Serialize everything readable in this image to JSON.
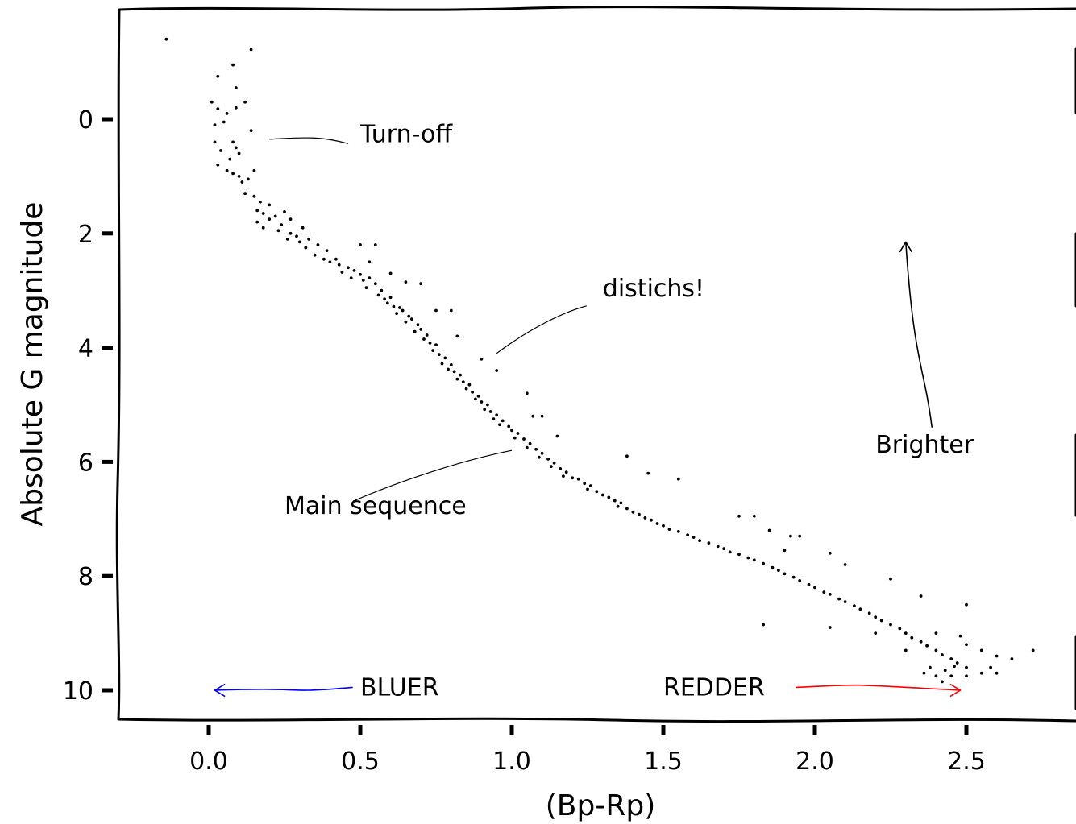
{
  "chart_data": {
    "type": "scatter",
    "title": "",
    "xlabel": "(Bp-Rp)",
    "ylabel": "Absolute G magnitude",
    "xlim": [
      -0.3,
      2.8
    ],
    "ylim": [
      10.4,
      -1.3
    ],
    "y_inverted": true,
    "grid": false,
    "style": "xkcd",
    "x_ticks": [
      {
        "value": 0.0,
        "label": "0.0"
      },
      {
        "value": 0.5,
        "label": "0.5"
      },
      {
        "value": 1.0,
        "label": "1.0"
      },
      {
        "value": 1.5,
        "label": "1.5"
      },
      {
        "value": 2.0,
        "label": "2.0"
      },
      {
        "value": 2.5,
        "label": "2.5"
      }
    ],
    "y_ticks": [
      {
        "value": 0,
        "label": "0"
      },
      {
        "value": 2,
        "label": "2"
      },
      {
        "value": 4,
        "label": "4"
      },
      {
        "value": 6,
        "label": "6"
      },
      {
        "value": 8,
        "label": "8"
      },
      {
        "value": 10,
        "label": "10"
      }
    ],
    "series": [
      {
        "color": "#000000",
        "marker": "dot",
        "points": [
          [
            -0.14,
            -1.4
          ],
          [
            0.08,
            -0.95
          ],
          [
            0.14,
            -1.22
          ],
          [
            0.03,
            -0.75
          ],
          [
            0.09,
            -0.55
          ],
          [
            0.12,
            -0.3
          ],
          [
            0.01,
            -0.3
          ],
          [
            0.03,
            -0.18
          ],
          [
            0.05,
            0.05
          ],
          [
            0.06,
            -0.1
          ],
          [
            0.09,
            -0.2
          ],
          [
            0.02,
            0.1
          ],
          [
            0.14,
            0.2
          ],
          [
            0.02,
            0.4
          ],
          [
            0.08,
            0.4
          ],
          [
            0.09,
            0.5
          ],
          [
            0.04,
            0.55
          ],
          [
            0.07,
            0.7
          ],
          [
            0.1,
            0.6
          ],
          [
            0.03,
            0.8
          ],
          [
            0.06,
            0.9
          ],
          [
            0.08,
            0.95
          ],
          [
            0.1,
            1.0
          ],
          [
            0.11,
            1.1
          ],
          [
            0.13,
            1.05
          ],
          [
            0.15,
            0.9
          ],
          [
            0.12,
            1.3
          ],
          [
            0.15,
            1.35
          ],
          [
            0.17,
            1.45
          ],
          [
            0.2,
            1.5
          ],
          [
            0.16,
            1.6
          ],
          [
            0.18,
            1.65
          ],
          [
            0.2,
            1.75
          ],
          [
            0.16,
            1.8
          ],
          [
            0.22,
            1.7
          ],
          [
            0.25,
            1.62
          ],
          [
            0.27,
            1.75
          ],
          [
            0.24,
            1.85
          ],
          [
            0.18,
            1.9
          ],
          [
            0.23,
            1.95
          ],
          [
            0.27,
            2.0
          ],
          [
            0.29,
            2.05
          ],
          [
            0.31,
            1.9
          ],
          [
            0.26,
            2.1
          ],
          [
            0.3,
            2.15
          ],
          [
            0.33,
            2.1
          ],
          [
            0.32,
            2.25
          ],
          [
            0.36,
            2.2
          ],
          [
            0.39,
            2.3
          ],
          [
            0.35,
            2.38
          ],
          [
            0.38,
            2.45
          ],
          [
            0.4,
            2.5
          ],
          [
            0.42,
            2.45
          ],
          [
            0.43,
            2.55
          ],
          [
            0.46,
            2.6
          ],
          [
            0.44,
            2.68
          ],
          [
            0.48,
            2.65
          ],
          [
            0.5,
            2.72
          ],
          [
            0.47,
            2.78
          ],
          [
            0.51,
            2.82
          ],
          [
            0.53,
            2.78
          ],
          [
            0.55,
            2.88
          ],
          [
            0.52,
            2.95
          ],
          [
            0.57,
            3.0
          ],
          [
            0.56,
            3.08
          ],
          [
            0.58,
            3.15
          ],
          [
            0.6,
            3.12
          ],
          [
            0.59,
            3.22
          ],
          [
            0.61,
            3.28
          ],
          [
            0.63,
            3.3
          ],
          [
            0.62,
            3.4
          ],
          [
            0.64,
            3.35
          ],
          [
            0.66,
            3.45
          ],
          [
            0.65,
            3.55
          ],
          [
            0.67,
            3.5
          ],
          [
            0.69,
            3.6
          ],
          [
            0.7,
            3.68
          ],
          [
            0.68,
            3.72
          ],
          [
            0.72,
            3.78
          ],
          [
            0.71,
            3.85
          ],
          [
            0.73,
            3.92
          ],
          [
            0.75,
            3.95
          ],
          [
            0.74,
            4.05
          ],
          [
            0.76,
            4.12
          ],
          [
            0.78,
            4.18
          ],
          [
            0.77,
            4.28
          ],
          [
            0.8,
            4.3
          ],
          [
            0.79,
            4.38
          ],
          [
            0.81,
            4.42
          ],
          [
            0.83,
            4.48
          ],
          [
            0.82,
            4.55
          ],
          [
            0.84,
            4.6
          ],
          [
            0.86,
            4.65
          ],
          [
            0.85,
            4.72
          ],
          [
            0.87,
            4.78
          ],
          [
            0.89,
            4.85
          ],
          [
            0.88,
            4.9
          ],
          [
            0.9,
            4.95
          ],
          [
            0.92,
            5.0
          ],
          [
            0.91,
            5.08
          ],
          [
            0.93,
            5.12
          ],
          [
            0.95,
            5.18
          ],
          [
            0.94,
            5.25
          ],
          [
            0.97,
            5.28
          ],
          [
            0.96,
            5.35
          ],
          [
            0.99,
            5.38
          ],
          [
            1.0,
            5.45
          ],
          [
            1.02,
            5.5
          ],
          [
            1.01,
            5.58
          ],
          [
            1.04,
            5.6
          ],
          [
            1.06,
            5.68
          ],
          [
            1.05,
            5.75
          ],
          [
            1.08,
            5.78
          ],
          [
            1.1,
            5.85
          ],
          [
            1.09,
            5.92
          ],
          [
            1.12,
            5.95
          ],
          [
            1.14,
            6.02
          ],
          [
            1.13,
            6.08
          ],
          [
            1.16,
            6.12
          ],
          [
            1.18,
            6.18
          ],
          [
            1.17,
            6.25
          ],
          [
            1.2,
            6.28
          ],
          [
            1.22,
            6.3
          ],
          [
            1.24,
            6.38
          ],
          [
            1.26,
            6.42
          ],
          [
            1.25,
            6.48
          ],
          [
            1.28,
            6.52
          ],
          [
            1.3,
            6.58
          ],
          [
            1.32,
            6.62
          ],
          [
            1.34,
            6.68
          ],
          [
            1.36,
            6.72
          ],
          [
            1.35,
            6.78
          ],
          [
            1.38,
            6.82
          ],
          [
            1.4,
            6.88
          ],
          [
            1.42,
            6.92
          ],
          [
            1.44,
            6.98
          ],
          [
            1.46,
            7.02
          ],
          [
            1.48,
            7.08
          ],
          [
            1.5,
            7.12
          ],
          [
            1.52,
            7.18
          ],
          [
            1.55,
            7.22
          ],
          [
            1.58,
            7.28
          ],
          [
            1.6,
            7.32
          ],
          [
            1.62,
            7.38
          ],
          [
            1.65,
            7.42
          ],
          [
            1.68,
            7.48
          ],
          [
            1.7,
            7.52
          ],
          [
            1.72,
            7.58
          ],
          [
            1.75,
            7.62
          ],
          [
            1.78,
            7.68
          ],
          [
            1.8,
            7.72
          ],
          [
            1.83,
            7.78
          ],
          [
            1.86,
            7.85
          ],
          [
            1.88,
            7.9
          ],
          [
            1.9,
            7.96
          ],
          [
            1.93,
            8.02
          ],
          [
            1.95,
            8.08
          ],
          [
            1.98,
            8.15
          ],
          [
            2.0,
            8.2
          ],
          [
            2.03,
            8.28
          ],
          [
            2.05,
            8.32
          ],
          [
            2.08,
            8.4
          ],
          [
            2.1,
            8.45
          ],
          [
            2.13,
            8.52
          ],
          [
            2.15,
            8.58
          ],
          [
            2.18,
            8.65
          ],
          [
            2.2,
            8.72
          ],
          [
            2.22,
            8.78
          ],
          [
            2.25,
            8.85
          ],
          [
            2.28,
            8.92
          ],
          [
            2.3,
            9.0
          ],
          [
            2.32,
            9.08
          ],
          [
            2.35,
            9.15
          ],
          [
            2.37,
            9.22
          ],
          [
            2.4,
            9.3
          ],
          [
            2.42,
            9.38
          ],
          [
            2.45,
            9.45
          ],
          [
            2.47,
            9.52
          ],
          [
            2.5,
            9.6
          ],
          [
            0.5,
            2.2
          ],
          [
            0.55,
            2.2
          ],
          [
            0.53,
            2.5
          ],
          [
            0.6,
            2.7
          ],
          [
            0.65,
            2.85
          ],
          [
            0.7,
            2.88
          ],
          [
            0.75,
            3.35
          ],
          [
            0.8,
            3.35
          ],
          [
            0.82,
            3.8
          ],
          [
            0.9,
            4.2
          ],
          [
            0.95,
            4.4
          ],
          [
            1.05,
            4.8
          ],
          [
            1.07,
            5.2
          ],
          [
            1.1,
            5.2
          ],
          [
            1.15,
            5.55
          ],
          [
            1.38,
            5.9
          ],
          [
            1.45,
            6.2
          ],
          [
            1.55,
            6.3
          ],
          [
            1.75,
            6.95
          ],
          [
            1.8,
            6.95
          ],
          [
            1.85,
            7.2
          ],
          [
            1.92,
            7.3
          ],
          [
            1.95,
            7.3
          ],
          [
            1.9,
            7.55
          ],
          [
            2.05,
            7.6
          ],
          [
            2.1,
            7.8
          ],
          [
            2.25,
            8.05
          ],
          [
            2.35,
            8.35
          ],
          [
            2.5,
            8.5
          ],
          [
            1.83,
            8.85
          ],
          [
            2.05,
            8.9
          ],
          [
            2.2,
            9.0
          ],
          [
            2.3,
            9.3
          ],
          [
            2.4,
            9.0
          ],
          [
            2.55,
            9.3
          ],
          [
            2.6,
            9.4
          ],
          [
            2.72,
            9.3
          ],
          [
            2.65,
            9.45
          ],
          [
            2.58,
            9.6
          ],
          [
            2.6,
            9.7
          ],
          [
            2.55,
            9.7
          ],
          [
            2.45,
            9.75
          ],
          [
            2.5,
            9.75
          ],
          [
            2.42,
            9.85
          ],
          [
            2.5,
            9.2
          ],
          [
            2.48,
            9.05
          ],
          [
            2.38,
            9.6
          ],
          [
            2.36,
            9.7
          ],
          [
            2.4,
            9.75
          ],
          [
            2.43,
            9.65
          ],
          [
            2.46,
            9.58
          ]
        ]
      }
    ],
    "annotations": [
      {
        "text": "Turn-off",
        "x": 0.5,
        "y": 0.4,
        "point_x": 0.2,
        "point_y": 0.35,
        "color": "#000000"
      },
      {
        "text": "distichs!",
        "x": 1.3,
        "y": 3.1,
        "point_x": 0.95,
        "point_y": 4.1,
        "color": "#000000"
      },
      {
        "text": "Main sequence",
        "x": 0.25,
        "y": 6.8,
        "point_x": 1.0,
        "point_y": 5.8,
        "color": "#000000"
      },
      {
        "text": "Brighter",
        "x": 2.2,
        "y": 5.7,
        "point_x": 2.3,
        "point_y": 2.15,
        "color": "#000000"
      },
      {
        "text": "BLUER",
        "x": 0.5,
        "y": 9.95,
        "point_x": 0.02,
        "point_y": 10.0,
        "color": "#0000ff"
      },
      {
        "text": "REDDER",
        "x": 1.5,
        "y": 9.95,
        "point_x": 2.48,
        "point_y": 10.0,
        "color": "#ff0000"
      }
    ]
  }
}
